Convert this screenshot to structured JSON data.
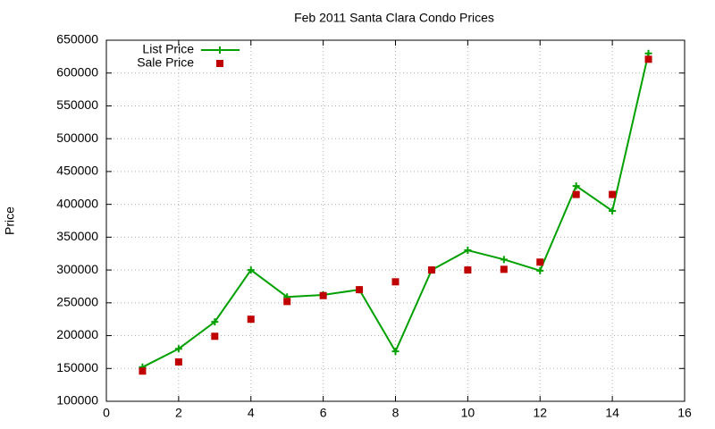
{
  "chart_data": {
    "type": "line",
    "title": "Feb 2011 Santa Clara Condo Prices",
    "y_label": "Price",
    "x": [
      1,
      2,
      3,
      4,
      5,
      6,
      7,
      8,
      9,
      10,
      11,
      12,
      13,
      14,
      15
    ],
    "series": [
      {
        "name": "List Price",
        "color": "#00a000",
        "style": "linespoints",
        "values": [
          152000,
          180000,
          221000,
          300000,
          259000,
          262000,
          270000,
          176000,
          300000,
          330000,
          316000,
          299000,
          428000,
          390000,
          630000
        ]
      },
      {
        "name": "Sale Price",
        "color": "#c00000",
        "style": "points",
        "values": [
          146000,
          160000,
          199000,
          225000,
          252000,
          261000,
          270000,
          282000,
          300000,
          300000,
          301000,
          312000,
          415000,
          415000,
          621000
        ]
      }
    ],
    "xlim": [
      0,
      16
    ],
    "xticks": [
      0,
      2,
      4,
      6,
      8,
      10,
      12,
      14,
      16
    ],
    "ylim": [
      100000,
      650000
    ],
    "yticks": [
      100000,
      150000,
      200000,
      250000,
      300000,
      350000,
      400000,
      450000,
      500000,
      550000,
      600000,
      650000
    ],
    "grid": true,
    "legend": "top-left"
  }
}
